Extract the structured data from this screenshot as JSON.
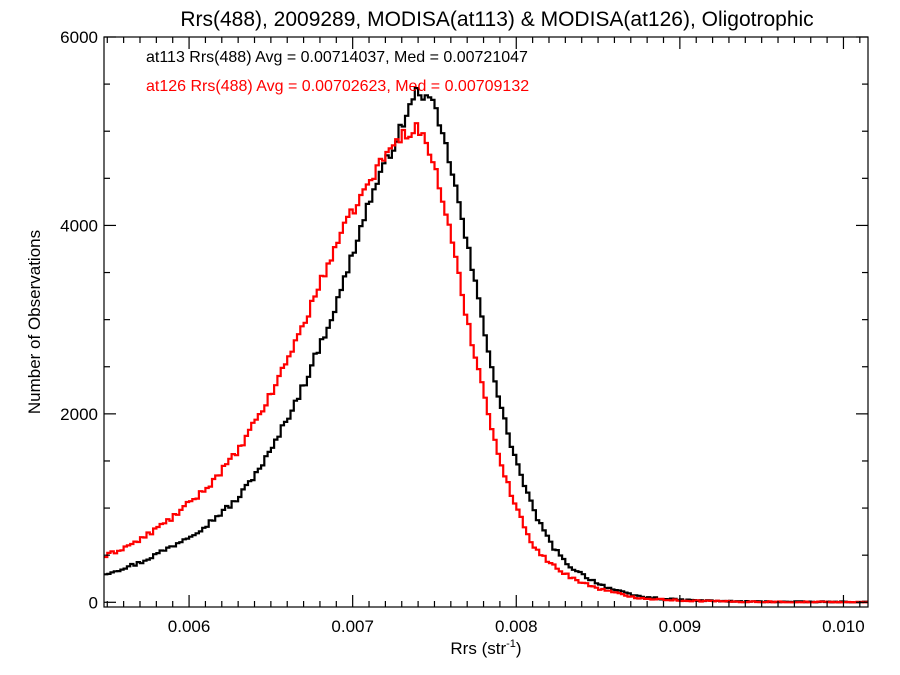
{
  "chart_data": {
    "type": "line",
    "title": "Rrs(488), 2009289, MODISA(at113) & MODISA(at126), Oligotrophic",
    "xlabel": "Rrs (str",
    "xlabel_sup": "-1",
    "xlabel_close": ")",
    "ylabel": "Number of Observations",
    "xlim": [
      0.00548,
      0.01015
    ],
    "ylim": [
      -50,
      6000
    ],
    "x_ticks": [
      0.006,
      0.007,
      0.008,
      0.009,
      0.01
    ],
    "x_tick_labels": [
      "0.006",
      "0.007",
      "0.008",
      "0.009",
      "0.010"
    ],
    "y_ticks": [
      0,
      2000,
      4000,
      6000
    ],
    "y_tick_labels": [
      "0",
      "2000",
      "4000",
      "6000"
    ],
    "grid": false,
    "step": true,
    "annotations": [
      {
        "text": "at113 Rrs(488) Avg = 0.00714037, Med = 0.00721047",
        "color": "#000000"
      },
      {
        "text": "at126 Rrs(488) Avg = 0.00702623, Med = 0.00709132",
        "color": "#ff0000"
      }
    ],
    "series": [
      {
        "color": "#000000",
        "points": [
          [
            0.00548,
            300
          ],
          [
            0.0057,
            420
          ],
          [
            0.0059,
            600
          ],
          [
            0.0061,
            810
          ],
          [
            0.0063,
            1100
          ],
          [
            0.0065,
            1600
          ],
          [
            0.0067,
            2300
          ],
          [
            0.0069,
            3150
          ],
          [
            0.007,
            3700
          ],
          [
            0.0071,
            4250
          ],
          [
            0.0072,
            4650
          ],
          [
            0.0073,
            5050
          ],
          [
            0.0074,
            5450
          ],
          [
            0.0075,
            5250
          ],
          [
            0.0076,
            4650
          ],
          [
            0.0077,
            3800
          ],
          [
            0.0078,
            2950
          ],
          [
            0.0079,
            2100
          ],
          [
            0.008,
            1500
          ],
          [
            0.0081,
            1000
          ],
          [
            0.0082,
            650
          ],
          [
            0.0083,
            420
          ],
          [
            0.0084,
            300
          ],
          [
            0.0085,
            200
          ],
          [
            0.0086,
            130
          ],
          [
            0.0087,
            80
          ],
          [
            0.0088,
            50
          ],
          [
            0.009,
            25
          ],
          [
            0.0093,
            10
          ],
          [
            0.0096,
            5
          ],
          [
            0.01015,
            2
          ]
        ]
      },
      {
        "color": "#ff0000",
        "points": [
          [
            0.00548,
            480
          ],
          [
            0.0057,
            660
          ],
          [
            0.0059,
            900
          ],
          [
            0.0061,
            1200
          ],
          [
            0.0063,
            1600
          ],
          [
            0.0065,
            2200
          ],
          [
            0.0067,
            2950
          ],
          [
            0.0069,
            3800
          ],
          [
            0.007,
            4150
          ],
          [
            0.0071,
            4450
          ],
          [
            0.0072,
            4750
          ],
          [
            0.0073,
            4950
          ],
          [
            0.0074,
            5050
          ],
          [
            0.0075,
            4650
          ],
          [
            0.0076,
            3900
          ],
          [
            0.0077,
            3000
          ],
          [
            0.0078,
            2250
          ],
          [
            0.0079,
            1500
          ],
          [
            0.008,
            1000
          ],
          [
            0.0081,
            620
          ],
          [
            0.0082,
            420
          ],
          [
            0.0083,
            300
          ],
          [
            0.0084,
            210
          ],
          [
            0.0085,
            150
          ],
          [
            0.0086,
            100
          ],
          [
            0.0087,
            60
          ],
          [
            0.0088,
            40
          ],
          [
            0.009,
            20
          ],
          [
            0.0093,
            8
          ],
          [
            0.0096,
            4
          ],
          [
            0.01015,
            1
          ]
        ]
      }
    ]
  }
}
